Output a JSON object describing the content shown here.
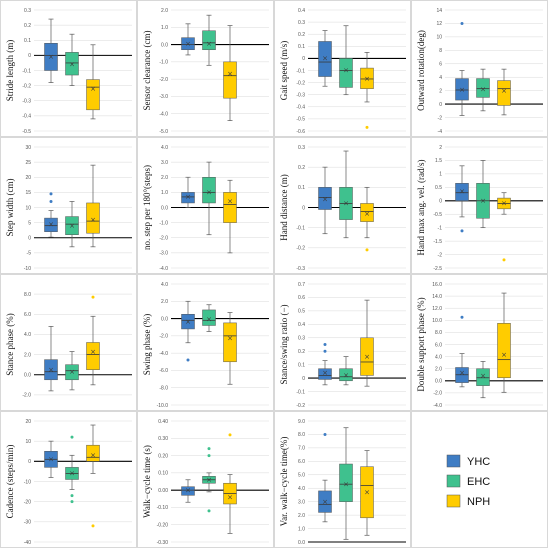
{
  "colors": {
    "YHC": "#3f7dc4",
    "EHC": "#3fc18e",
    "NPH": "#ffcc00"
  },
  "legend": [
    {
      "name": "YHC",
      "color": "#3f7dc4"
    },
    {
      "name": "EHC",
      "color": "#3fc18e"
    },
    {
      "name": "NPH",
      "color": "#ffcc00"
    }
  ],
  "chart_data": [
    {
      "type": "box",
      "ylabel": "Stride length (m)",
      "ylim": [
        -0.5,
        0.3
      ],
      "ticks": [
        "0.3",
        "0.2",
        "0.1",
        "0",
        "-0.1",
        "-0.2",
        "-0.3",
        "-0.4",
        "-0.5"
      ],
      "tick_values": [
        0.3,
        0.2,
        0.1,
        0,
        -0.1,
        -0.2,
        -0.3,
        -0.4,
        -0.5
      ],
      "series": [
        {
          "name": "YHC",
          "min": -0.18,
          "q1": -0.1,
          "median": 0.0,
          "q3": 0.08,
          "max": 0.24,
          "mean": -0.01,
          "outliers": []
        },
        {
          "name": "EHC",
          "min": -0.2,
          "q1": -0.13,
          "median": -0.05,
          "q3": 0.02,
          "max": 0.14,
          "mean": -0.06,
          "outliers": []
        },
        {
          "name": "NPH",
          "min": -0.42,
          "q1": -0.36,
          "median": -0.21,
          "q3": -0.16,
          "max": 0.07,
          "mean": -0.22,
          "outliers": []
        }
      ]
    },
    {
      "type": "box",
      "ylabel": "Sensor clearance (cm)",
      "ylim": [
        -5.0,
        2.0
      ],
      "ticks": [
        "2.0",
        "1.0",
        "0.0",
        "-1.0",
        "-2.0",
        "-3.0",
        "-4.0",
        "-5.0"
      ],
      "tick_values": [
        2,
        1,
        0,
        -1,
        -2,
        -3,
        -4,
        -5
      ],
      "series": [
        {
          "name": "YHC",
          "min": -0.6,
          "q1": -0.3,
          "median": 0.0,
          "q3": 0.4,
          "max": 1.2,
          "mean": 0.05,
          "outliers": []
        },
        {
          "name": "EHC",
          "min": -1.2,
          "q1": -0.3,
          "median": 0.1,
          "q3": 0.8,
          "max": 1.7,
          "mean": 0.05,
          "outliers": []
        },
        {
          "name": "NPH",
          "min": -4.4,
          "q1": -3.1,
          "median": -1.8,
          "q3": -1.0,
          "max": 1.1,
          "mean": -1.7,
          "outliers": []
        }
      ]
    },
    {
      "type": "box",
      "ylabel": "Gait speed (m/s)",
      "ylim": [
        -0.6,
        0.4
      ],
      "ticks": [
        "0.4",
        "0.3",
        "0.2",
        "0.1",
        "0",
        "-0.1",
        "-0.2",
        "-0.3",
        "-0.4",
        "-0.5",
        "-0.6"
      ],
      "tick_values": [
        0.4,
        0.3,
        0.2,
        0.1,
        0,
        -0.1,
        -0.2,
        -0.3,
        -0.4,
        -0.5,
        -0.6
      ],
      "series": [
        {
          "name": "YHC",
          "min": -0.23,
          "q1": -0.15,
          "median": -0.03,
          "q3": 0.14,
          "max": 0.23,
          "mean": 0.0,
          "outliers": []
        },
        {
          "name": "EHC",
          "min": -0.3,
          "q1": -0.24,
          "median": -0.1,
          "q3": 0.0,
          "max": 0.27,
          "mean": -0.1,
          "outliers": []
        },
        {
          "name": "NPH",
          "min": -0.36,
          "q1": -0.25,
          "median": -0.17,
          "q3": -0.08,
          "max": 0.05,
          "mean": -0.17,
          "outliers": [
            -0.57
          ]
        }
      ]
    },
    {
      "type": "box",
      "ylabel": "Outward rotation(deg)",
      "ylim": [
        -4,
        14
      ],
      "ticks": [
        "14",
        "12",
        "10",
        "8",
        "6",
        "4",
        "2",
        "0",
        "-2",
        "-4"
      ],
      "tick_values": [
        14,
        12,
        10,
        8,
        6,
        4,
        2,
        0,
        -2,
        -4
      ],
      "series": [
        {
          "name": "YHC",
          "min": -1.7,
          "q1": 0.6,
          "median": 2.1,
          "q3": 3.8,
          "max": 5.0,
          "mean": 2.1,
          "outliers": [
            12.0
          ]
        },
        {
          "name": "EHC",
          "min": -1.0,
          "q1": 1.0,
          "median": 2.3,
          "q3": 3.8,
          "max": 5.2,
          "mean": 2.2,
          "outliers": []
        },
        {
          "name": "NPH",
          "min": -1.6,
          "q1": -0.2,
          "median": 2.3,
          "q3": 3.5,
          "max": 5.2,
          "mean": 2.0,
          "outliers": []
        }
      ]
    },
    {
      "type": "box",
      "ylabel": "Step width (cm)",
      "ylim": [
        -10,
        30
      ],
      "ticks": [
        "30",
        "25",
        "20",
        "15",
        "10",
        "5",
        "0",
        "-5",
        "-10"
      ],
      "tick_values": [
        30,
        25,
        20,
        15,
        10,
        5,
        0,
        -5,
        -10
      ],
      "series": [
        {
          "name": "YHC",
          "min": 0.2,
          "q1": 2.0,
          "median": 4.0,
          "q3": 6.5,
          "max": 9.0,
          "mean": 4.5,
          "outliers": [
            12.0,
            14.5
          ]
        },
        {
          "name": "EHC",
          "min": -3.0,
          "q1": 1.0,
          "median": 4.5,
          "q3": 7.0,
          "max": 12.0,
          "mean": 4.0,
          "outliers": []
        },
        {
          "name": "NPH",
          "min": -3.0,
          "q1": 1.5,
          "median": 5.5,
          "q3": 11.5,
          "max": 24.0,
          "mean": 6.0,
          "outliers": []
        }
      ]
    },
    {
      "type": "box",
      "ylabel": "no. step per 180°(steps)",
      "ylim": [
        -4.0,
        4.0
      ],
      "ticks": [
        "4.0",
        "3.0",
        "2.0",
        "1.0",
        "0.0",
        "-1.0",
        "-2.0",
        "-3.0",
        "-4.0"
      ],
      "tick_values": [
        4,
        3,
        2,
        1,
        0,
        -1,
        -2,
        -3,
        -4
      ],
      "series": [
        {
          "name": "YHC",
          "min": 0.0,
          "q1": 0.3,
          "median": 0.7,
          "q3": 1.0,
          "max": 2.0,
          "mean": 0.7,
          "outliers": []
        },
        {
          "name": "EHC",
          "min": -1.8,
          "q1": 0.3,
          "median": 1.0,
          "q3": 2.0,
          "max": 3.0,
          "mean": 1.0,
          "outliers": []
        },
        {
          "name": "NPH",
          "min": -3.0,
          "q1": -1.0,
          "median": 0.2,
          "q3": 1.0,
          "max": 1.8,
          "mean": 0.4,
          "outliers": []
        }
      ]
    },
    {
      "type": "box",
      "ylabel": "Hand distance (m)",
      "ylim": [
        -0.3,
        0.3
      ],
      "ticks": [
        "0.3",
        "0.2",
        "0.1",
        "0",
        "-0.1",
        "-0.2",
        "-0.3"
      ],
      "tick_values": [
        0.3,
        0.2,
        0.1,
        0,
        -0.1,
        -0.2,
        -0.3
      ],
      "series": [
        {
          "name": "YHC",
          "min": -0.13,
          "q1": -0.01,
          "median": 0.05,
          "q3": 0.1,
          "max": 0.2,
          "mean": 0.04,
          "outliers": []
        },
        {
          "name": "EHC",
          "min": -0.15,
          "q1": -0.06,
          "median": 0.02,
          "q3": 0.1,
          "max": 0.28,
          "mean": 0.02,
          "outliers": []
        },
        {
          "name": "NPH",
          "min": -0.15,
          "q1": -0.07,
          "median": -0.02,
          "q3": 0.02,
          "max": 0.1,
          "mean": -0.03,
          "outliers": [
            -0.21
          ]
        }
      ]
    },
    {
      "type": "box",
      "ylabel": "Hand max ang. vel. (rad/s)",
      "ylim": [
        -2.5,
        2.0
      ],
      "ticks": [
        "2",
        "1.5",
        "1",
        "0.5",
        "0",
        "-0.5",
        "-1",
        "-1.5",
        "-2",
        "-2.5"
      ],
      "tick_values": [
        2,
        1.5,
        1,
        0.5,
        0,
        -0.5,
        -1,
        -1.5,
        -2,
        -2.5
      ],
      "series": [
        {
          "name": "YHC",
          "min": -0.6,
          "q1": 0.0,
          "median": 0.3,
          "q3": 0.65,
          "max": 1.3,
          "mean": 0.35,
          "outliers": [
            -1.12
          ]
        },
        {
          "name": "EHC",
          "min": -1.0,
          "q1": -0.65,
          "median": 0.0,
          "q3": 0.65,
          "max": 1.5,
          "mean": 0.0,
          "outliers": []
        },
        {
          "name": "NPH",
          "min": -0.5,
          "q1": -0.3,
          "median": -0.1,
          "q3": 0.1,
          "max": 0.3,
          "mean": -0.1,
          "outliers": [
            -2.2
          ]
        }
      ]
    },
    {
      "type": "box",
      "ylabel": "Stance phase (%)",
      "ylim": [
        -3.0,
        9.0
      ],
      "ticks": [
        "8.0",
        "6.0",
        "4.0",
        "2.0",
        "0.0",
        "-2.0"
      ],
      "tick_values": [
        8,
        6,
        4,
        2,
        0,
        -2
      ],
      "series": [
        {
          "name": "YHC",
          "min": -1.6,
          "q1": -0.5,
          "median": 0.3,
          "q3": 1.5,
          "max": 4.8,
          "mean": 0.5,
          "outliers": []
        },
        {
          "name": "EHC",
          "min": -1.5,
          "q1": -0.5,
          "median": 0.4,
          "q3": 1.0,
          "max": 2.3,
          "mean": 0.3,
          "outliers": []
        },
        {
          "name": "NPH",
          "min": -1.0,
          "q1": 0.5,
          "median": 2.0,
          "q3": 3.2,
          "max": 5.8,
          "mean": 2.3,
          "outliers": [
            7.7
          ]
        }
      ]
    },
    {
      "type": "box",
      "ylabel": "Swing phase (%)",
      "ylim": [
        -10.0,
        4.0
      ],
      "ticks": [
        "4.0",
        "2.0",
        "0.0",
        "-2.0",
        "-4.0",
        "-6.0",
        "-8.0",
        "-10.0"
      ],
      "tick_values": [
        4,
        2,
        0,
        -2,
        -4,
        -6,
        -8,
        -10
      ],
      "series": [
        {
          "name": "YHC",
          "min": -2.8,
          "q1": -1.2,
          "median": -0.2,
          "q3": 0.5,
          "max": 2.0,
          "mean": -0.4,
          "outliers": [
            -4.8
          ]
        },
        {
          "name": "EHC",
          "min": -1.5,
          "q1": -0.8,
          "median": -0.2,
          "q3": 1.0,
          "max": 1.6,
          "mean": -0.1,
          "outliers": []
        },
        {
          "name": "NPH",
          "min": -7.6,
          "q1": -5.0,
          "median": -2.0,
          "q3": -0.5,
          "max": 0.7,
          "mean": -2.3,
          "outliers": []
        }
      ]
    },
    {
      "type": "box",
      "ylabel": "Stance/swing ratio (−)",
      "ylim": [
        -0.2,
        0.7
      ],
      "ticks": [
        "0.7",
        "0.6",
        "0.5",
        "0.4",
        "0.3",
        "0.2",
        "0.1",
        "0",
        "-0.1",
        "-0.2"
      ],
      "tick_values": [
        0.7,
        0.6,
        0.5,
        0.4,
        0.3,
        0.2,
        0.1,
        0,
        -0.1,
        -0.2
      ],
      "series": [
        {
          "name": "YHC",
          "min": -0.05,
          "q1": -0.01,
          "median": 0.02,
          "q3": 0.07,
          "max": 0.13,
          "mean": 0.04,
          "outliers": [
            0.2,
            0.25
          ]
        },
        {
          "name": "EHC",
          "min": -0.05,
          "q1": -0.02,
          "median": 0.01,
          "q3": 0.07,
          "max": 0.16,
          "mean": 0.02,
          "outliers": []
        },
        {
          "name": "NPH",
          "min": -0.06,
          "q1": 0.02,
          "median": 0.12,
          "q3": 0.3,
          "max": 0.58,
          "mean": 0.16,
          "outliers": []
        }
      ]
    },
    {
      "type": "box",
      "ylabel": "Double support phase (%)",
      "ylim": [
        -4.0,
        16.0
      ],
      "ticks": [
        "16.0",
        "14.0",
        "12.0",
        "10.0",
        "8.0",
        "6.0",
        "4.0",
        "2.0",
        "0.0",
        "-2.0",
        "-4.0"
      ],
      "tick_values": [
        16,
        14,
        12,
        10,
        8,
        6,
        4,
        2,
        0,
        -2,
        -4
      ],
      "series": [
        {
          "name": "YHC",
          "min": -1.0,
          "q1": -0.3,
          "median": 1.0,
          "q3": 2.2,
          "max": 4.5,
          "mean": 1.3,
          "outliers": [
            10.5
          ]
        },
        {
          "name": "EHC",
          "min": -2.8,
          "q1": -0.8,
          "median": 0.5,
          "q3": 2.0,
          "max": 3.2,
          "mean": 0.8,
          "outliers": []
        },
        {
          "name": "NPH",
          "min": -1.9,
          "q1": 0.5,
          "median": 3.5,
          "q3": 9.5,
          "max": 14.5,
          "mean": 4.3,
          "outliers": []
        }
      ]
    },
    {
      "type": "box",
      "ylabel": "Cadence (steps/min)",
      "ylim": [
        -40,
        20
      ],
      "ticks": [
        "20",
        "10",
        "0",
        "-10",
        "-20",
        "-30",
        "-40"
      ],
      "tick_values": [
        20,
        10,
        0,
        -10,
        -20,
        -30,
        -40
      ],
      "series": [
        {
          "name": "YHC",
          "min": -8,
          "q1": -3,
          "median": 1,
          "q3": 5,
          "max": 10,
          "mean": 1,
          "outliers": []
        },
        {
          "name": "EHC",
          "min": -14,
          "q1": -9,
          "median": -6,
          "q3": -3,
          "max": 3,
          "mean": -6,
          "outliers": [
            -17,
            -20,
            12
          ]
        },
        {
          "name": "NPH",
          "min": -6,
          "q1": 0,
          "median": 2,
          "q3": 8,
          "max": 18,
          "mean": 3,
          "outliers": [
            -32
          ]
        }
      ]
    },
    {
      "type": "box",
      "ylabel": "Walk−cycle time (s)",
      "ylim": [
        -0.3,
        0.4
      ],
      "ticks": [
        "0.40",
        "0.30",
        "0.20",
        "0.10",
        "0.00",
        "-0.10",
        "-0.20",
        "-0.30"
      ],
      "tick_values": [
        0.4,
        0.3,
        0.2,
        0.1,
        0,
        -0.1,
        -0.2,
        -0.3
      ],
      "series": [
        {
          "name": "YHC",
          "min": -0.07,
          "q1": -0.03,
          "median": 0.0,
          "q3": 0.02,
          "max": 0.06,
          "mean": 0.0,
          "outliers": []
        },
        {
          "name": "EHC",
          "min": -0.01,
          "q1": 0.04,
          "median": 0.06,
          "q3": 0.08,
          "max": 0.1,
          "mean": 0.06,
          "outliers": [
            0.2,
            0.24,
            -0.12
          ]
        },
        {
          "name": "NPH",
          "min": -0.25,
          "q1": -0.08,
          "median": -0.02,
          "q3": 0.04,
          "max": 0.09,
          "mean": -0.04,
          "outliers": [
            0.32
          ]
        }
      ]
    },
    {
      "type": "box",
      "ylabel": "Var. walk−cycle time(%)",
      "ylim": [
        0.0,
        9.0
      ],
      "ticks": [
        "9.0",
        "8.0",
        "7.0",
        "6.0",
        "5.0",
        "4.0",
        "3.0",
        "2.0",
        "1.0",
        "0.0"
      ],
      "tick_values": [
        9,
        8,
        7,
        6,
        5,
        4,
        3,
        2,
        1,
        0
      ],
      "series": [
        {
          "name": "YHC",
          "min": 1.5,
          "q1": 2.2,
          "median": 2.8,
          "q3": 3.8,
          "max": 4.6,
          "mean": 3.0,
          "outliers": [
            8.0
          ]
        },
        {
          "name": "EHC",
          "min": 0.2,
          "q1": 3.0,
          "median": 4.3,
          "q3": 5.8,
          "max": 8.5,
          "mean": 4.3,
          "outliers": []
        },
        {
          "name": "NPH",
          "min": 0.5,
          "q1": 1.8,
          "median": 4.2,
          "q3": 5.6,
          "max": 6.8,
          "mean": 3.7,
          "outliers": []
        }
      ]
    }
  ]
}
